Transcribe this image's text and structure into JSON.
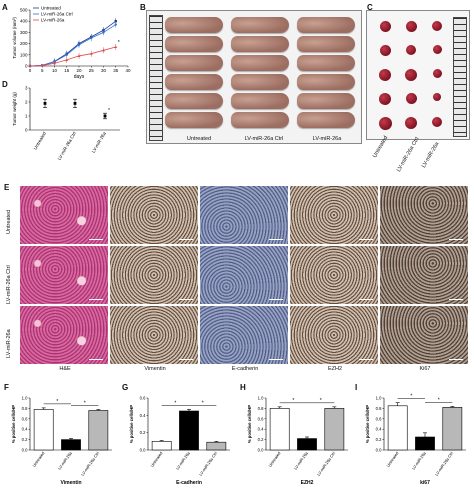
{
  "labels": {
    "A": "A",
    "B": "B",
    "C": "C",
    "D": "D",
    "E": "E",
    "F": "F",
    "G": "G",
    "H": "H",
    "I": "I"
  },
  "groups": {
    "untreated": "Untreated",
    "ctrl": "LV-miR-26a Ctrl",
    "mir": "LV-miR-26a"
  },
  "panel_b": {
    "labels": [
      "Untreated",
      "LV-miR-26a Ctrl",
      "LV-miR-26a"
    ]
  },
  "panel_c": {
    "labels": [
      "Untreated",
      "LV-miR-26a Ctrl",
      "LV-miR-26a"
    ]
  },
  "panel_e": {
    "row_labels": [
      "Untreated",
      "LV-miR-26a Ctrl",
      "LV-miR-26a"
    ],
    "col_labels": [
      "H&E",
      "Vimentin",
      "E-cadherin",
      "EZH2",
      "Ki67"
    ]
  },
  "colors": {
    "untreated": "#1f3a8a",
    "ctrl": "#2b6fd6",
    "mir": "#e04a4a",
    "bar_black": "#000000",
    "bar_white": "#ffffff",
    "bar_grey": "#b8b8b8"
  },
  "chart_data": [
    {
      "id": "A",
      "type": "line",
      "xlabel": "days",
      "ylabel": "Tumor volume (mm³)",
      "x": [
        0,
        5,
        10,
        15,
        20,
        25,
        30,
        35
      ],
      "xticks": [
        "0",
        "5",
        "10",
        "15",
        "20",
        "25",
        "30",
        "35",
        "40"
      ],
      "yticks": [
        "0",
        "100",
        "200",
        "300",
        "400",
        "500"
      ],
      "ylim": [
        0,
        500
      ],
      "xlim": [
        0,
        40
      ],
      "series": [
        {
          "name": "Untreated",
          "values": [
            0,
            5,
            40,
            110,
            200,
            260,
            320,
            400
          ]
        },
        {
          "name": "LV-miR-26a Ctrl",
          "values": [
            0,
            5,
            38,
            100,
            190,
            250,
            300,
            370
          ]
        },
        {
          "name": "LV-miR-26a",
          "values": [
            0,
            4,
            25,
            55,
            90,
            110,
            140,
            170
          ]
        }
      ],
      "annotation": "*"
    },
    {
      "id": "D",
      "type": "scatter",
      "ylabel": "Tumor weight (g)",
      "yticks": [
        "0",
        "1",
        "2",
        "3"
      ],
      "ylim": [
        0,
        3
      ],
      "categories": [
        "Untreated",
        "LV-miR-26a Ctrl",
        "LV-miR-26a"
      ],
      "values": [
        1.9,
        1.9,
        1.0
      ],
      "errors": [
        0.3,
        0.3,
        0.2
      ],
      "annotation": "*"
    },
    {
      "id": "F",
      "type": "bar",
      "xlabel": "Vimentin",
      "ylabel": "% positive cells/HP",
      "yticks": [
        "0.0",
        "0.2",
        "0.4",
        "0.6",
        "0.8",
        "1.0"
      ],
      "ylim": [
        0,
        1.0
      ],
      "categories": [
        "Untreated",
        "LV-miR-26a",
        "LV-miR-26a Ctrl"
      ],
      "values": [
        0.78,
        0.2,
        0.76
      ],
      "errors": [
        0.03,
        0.02,
        0.02
      ],
      "annotation": "*"
    },
    {
      "id": "G",
      "type": "bar",
      "xlabel": "E-cadherin",
      "ylabel": "% positive cells/HP",
      "yticks": [
        "0.0",
        "0.2",
        "0.4",
        "0.6"
      ],
      "ylim": [
        0,
        0.6
      ],
      "categories": [
        "Untreated",
        "LV-miR-26a",
        "LV-miR-26a Ctrl"
      ],
      "values": [
        0.1,
        0.45,
        0.09
      ],
      "errors": [
        0.01,
        0.02,
        0.01
      ],
      "annotation": "*"
    },
    {
      "id": "H",
      "type": "bar",
      "xlabel": "EZH2",
      "ylabel": "% positive cells/HP",
      "yticks": [
        "0.0",
        "0.2",
        "0.4",
        "0.6",
        "0.8",
        "1.0"
      ],
      "ylim": [
        0,
        1.0
      ],
      "categories": [
        "Untreated",
        "LV-miR-26a",
        "LV-miR-26a Ctrl"
      ],
      "values": [
        0.8,
        0.22,
        0.8
      ],
      "errors": [
        0.03,
        0.03,
        0.03
      ],
      "annotation": "*"
    },
    {
      "id": "I",
      "type": "bar",
      "xlabel": "ki67",
      "ylabel": "% positive cells/HP",
      "yticks": [
        "0.0",
        "0.2",
        "0.4",
        "0.6",
        "0.8",
        "1.0"
      ],
      "ylim": [
        0,
        1.0
      ],
      "categories": [
        "Untreated",
        "LV-miR-26a",
        "LV-miR-26a Ctrl"
      ],
      "values": [
        0.85,
        0.25,
        0.82
      ],
      "errors": [
        0.06,
        0.08,
        0.02
      ],
      "annotation": "*"
    }
  ]
}
